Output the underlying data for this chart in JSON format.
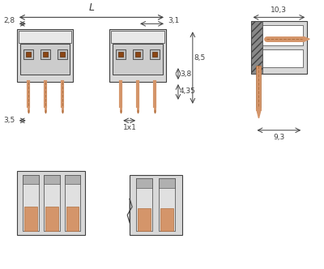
{
  "bg_color": "#ffffff",
  "drawing_color": "#404040",
  "gray_fill": "#d8d8d8",
  "dark_gray": "#888888",
  "copper_color": "#d4956a",
  "dark_copper": "#b07040",
  "brown_sq": "#8B4513",
  "hatching_color": "#555555",
  "dim_color": "#404040",
  "dim_font_size": 7,
  "label_font_size": 8,
  "annotations": {
    "L_label": "L",
    "d28": "2,8",
    "d31": "3,1",
    "d435": "4,35",
    "d85": "8,5",
    "d38": "3,8",
    "d35": "3,5",
    "d1x1": "1x1",
    "d103": "10,3",
    "d93": "9,3"
  }
}
